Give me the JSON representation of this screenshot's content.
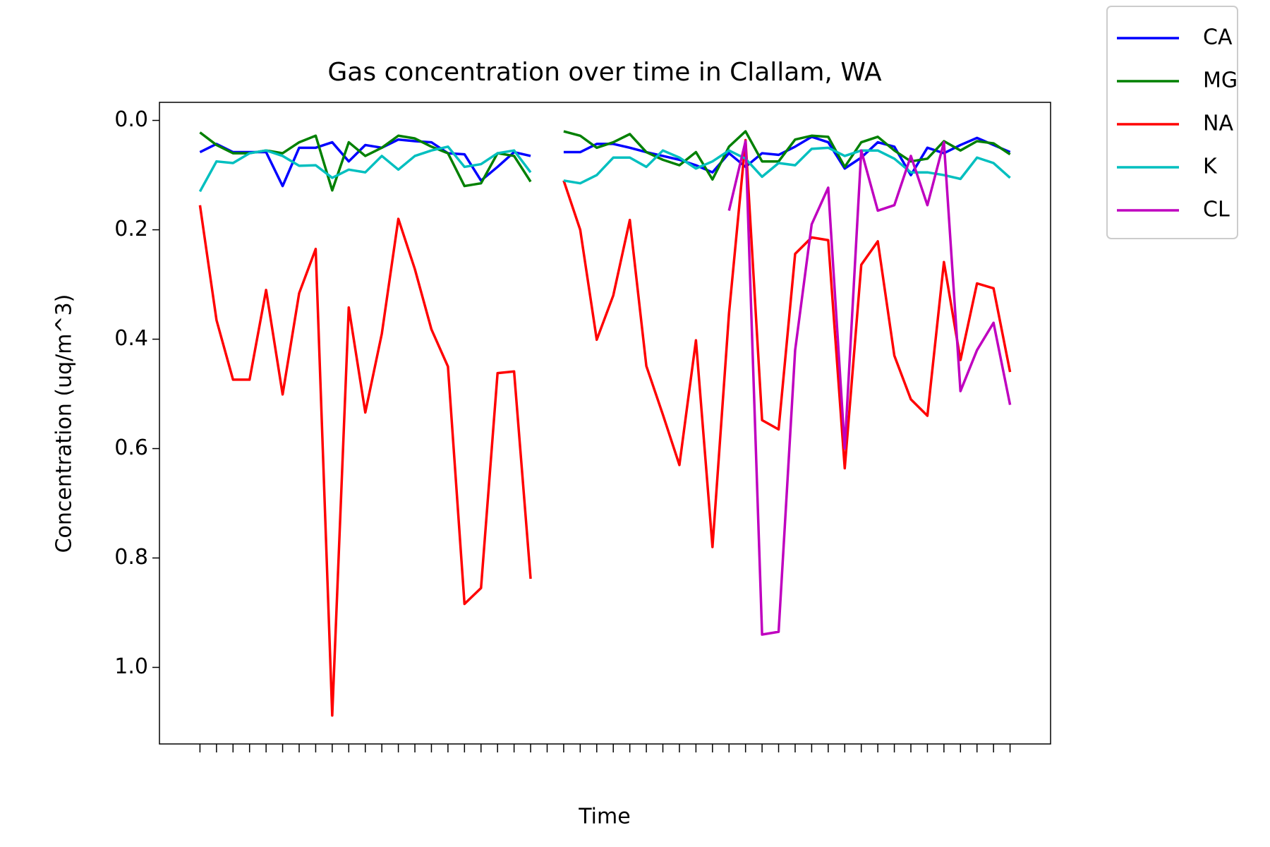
{
  "chart_data": {
    "type": "line",
    "title": "Gas concentration over time in Clallam, WA",
    "x_label": "Time",
    "y_label": "Concentration (uq/m^3)",
    "categories": [
      null,
      null,
      null,
      null,
      null,
      null,
      null,
      null,
      null,
      null,
      null,
      null,
      null,
      null,
      null,
      null,
      null,
      null,
      null,
      null,
      null,
      null,
      null,
      null,
      null,
      null,
      null,
      null,
      null,
      null,
      null,
      null,
      null,
      null,
      null,
      null,
      null,
      null,
      null,
      null,
      null,
      null,
      null,
      null,
      null,
      null,
      null,
      null,
      null,
      null
    ],
    "ylim": [
      1.14,
      -0.033
    ],
    "yticks": [
      {
        "value": 0,
        "label": "0.0"
      },
      0.2,
      0.4,
      0.6,
      0.8,
      {
        "value": 1,
        "label": "1.0"
      }
    ],
    "legend": "outside upper right",
    "series": [
      {
        "name": "CA",
        "color": "#0000ff",
        "values": [
          0.058,
          0.043,
          0.058,
          0.058,
          0.058,
          0.12,
          0.05,
          0.05,
          0.04,
          0.075,
          0.045,
          0.05,
          0.035,
          0.038,
          0.04,
          0.06,
          0.062,
          0.11,
          0.085,
          0.058,
          0.065,
          null,
          0.058,
          0.058,
          0.043,
          0.043,
          0.05,
          0.058,
          0.065,
          0.072,
          0.082,
          0.095,
          0.06,
          0.085,
          0.06,
          0.063,
          0.048,
          0.03,
          0.04,
          0.088,
          0.068,
          0.04,
          0.048,
          0.1,
          0.05,
          0.06,
          0.045,
          0.032,
          0.045,
          0.058
        ]
      },
      {
        "name": "MG",
        "color": "#008000",
        "values": [
          0.022,
          0.045,
          0.06,
          0.06,
          0.055,
          0.06,
          0.04,
          0.028,
          0.128,
          0.04,
          0.065,
          0.05,
          0.028,
          0.033,
          0.048,
          0.06,
          0.12,
          0.115,
          0.06,
          0.065,
          0.112,
          null,
          0.02,
          0.028,
          0.05,
          0.04,
          0.025,
          0.058,
          0.072,
          0.082,
          0.058,
          0.108,
          0.048,
          0.02,
          0.075,
          0.075,
          0.035,
          0.028,
          0.03,
          0.085,
          0.04,
          0.03,
          0.055,
          0.075,
          0.07,
          0.038,
          0.055,
          0.038,
          0.042,
          0.062
        ]
      },
      {
        "name": "NA",
        "color": "#ff0000",
        "values": [
          0.155,
          0.365,
          0.474,
          0.474,
          0.31,
          0.501,
          0.316,
          0.235,
          1.088,
          0.342,
          0.534,
          0.39,
          0.18,
          0.272,
          0.382,
          0.45,
          0.884,
          0.855,
          0.462,
          0.459,
          0.838,
          null,
          0.11,
          0.2,
          0.401,
          0.32,
          0.182,
          0.449,
          0.538,
          0.63,
          0.402,
          0.78,
          0.353,
          0.036,
          0.548,
          0.565,
          0.244,
          0.214,
          0.219,
          0.636,
          0.264,
          0.221,
          0.43,
          0.51,
          0.54,
          0.259,
          0.438,
          0.298,
          0.307,
          0.46
        ]
      },
      {
        "name": "K",
        "color": "#00bfbf",
        "values": [
          0.13,
          0.075,
          0.078,
          0.06,
          0.055,
          0.065,
          0.083,
          0.082,
          0.105,
          0.09,
          0.095,
          0.065,
          0.09,
          0.065,
          0.055,
          0.048,
          0.085,
          0.08,
          0.06,
          0.055,
          0.095,
          null,
          0.11,
          0.115,
          0.1,
          0.068,
          0.068,
          0.085,
          0.055,
          0.068,
          0.088,
          0.075,
          0.055,
          0.07,
          0.103,
          0.078,
          0.082,
          0.052,
          0.05,
          0.065,
          0.055,
          0.055,
          0.07,
          0.095,
          0.095,
          0.1,
          0.107,
          0.068,
          0.078,
          0.105
        ]
      },
      {
        "name": "CL",
        "color": "#bf00bf",
        "values": [
          null,
          null,
          null,
          null,
          null,
          null,
          null,
          null,
          null,
          null,
          null,
          null,
          null,
          null,
          null,
          null,
          null,
          null,
          null,
          null,
          null,
          null,
          null,
          null,
          null,
          null,
          null,
          null,
          null,
          null,
          null,
          null,
          0.165,
          0.038,
          0.94,
          0.935,
          0.42,
          0.19,
          0.123,
          0.6,
          0.055,
          0.165,
          0.155,
          0.065,
          0.155,
          0.04,
          0.495,
          0.42,
          0.37,
          0.52
        ]
      }
    ]
  }
}
